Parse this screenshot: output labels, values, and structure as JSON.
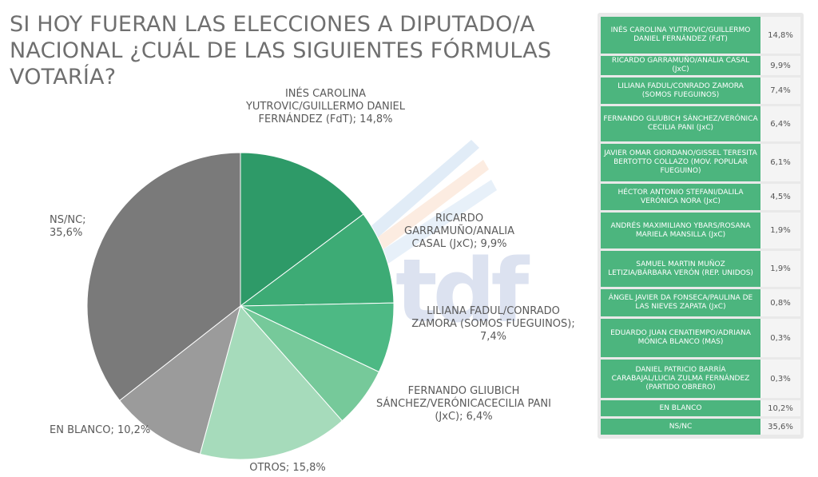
{
  "title": "SI HOY FUERAN LAS ELECCIONES A DIPUTADO/A NACIONAL ¿CUÁL DE LAS SIGUIENTES FÓRMULAS VOTARÍA?",
  "watermark": "tdf",
  "chart_data": {
    "type": "pie",
    "start": "12-o'clock, clockwise",
    "slices": [
      {
        "label": "INÉS CAROLINA YUTROVIC/GUILLERMO DANIEL FERNÁNDEZ (FdT); 14,8%",
        "value": 14.8,
        "color": "#2e9a68"
      },
      {
        "label": "RICARDO GARRAMUÑO/ANALIA CASAL (JxC); 9,9%",
        "value": 9.9,
        "color": "#3dab75"
      },
      {
        "label": "LILIANA FADUL/CONRADO ZAMORA (SOMOS FUEGUINOS); 7,4%",
        "value": 7.4,
        "color": "#4db984"
      },
      {
        "label": "FERNANDO GLIUBICH SÁNCHEZ/VERÓNICACECILIA PANI (JxC); 6,4%",
        "value": 6.4,
        "color": "#76c99a"
      },
      {
        "label": "OTROS; 15,8%",
        "value": 15.8,
        "color": "#a6dbbb"
      },
      {
        "label": "EN BLANCO; 10,2%",
        "value": 10.2,
        "color": "#9b9b9b"
      },
      {
        "label": "NS/NC; 35,6%",
        "value": 35.6,
        "color": "#7a7a7a"
      }
    ]
  },
  "table": {
    "rows": [
      {
        "name": "INÉS CAROLINA YUTROVIC/GUILLERMO DANIEL FERNÁNDEZ (FdT)",
        "value": "14,8%"
      },
      {
        "name": "RICARDO GARRAMUÑO/ANALIA CASAL (JxC)",
        "value": "9,9%"
      },
      {
        "name": "LILIANA FADUL/CONRADO ZAMORA (SOMOS FUEGUINOS)",
        "value": "7,4%"
      },
      {
        "name": "FERNANDO GLIUBICH SÁNCHEZ/VERÓNICA CECILIA PANI (JxC)",
        "value": "6,4%"
      },
      {
        "name": "JAVIER OMAR GIORDANO/GISSEL TERESITA BERTOTTO COLLAZO (MOV. POPULAR FUEGUINO)",
        "value": "6,1%"
      },
      {
        "name": "HÉCTOR ANTONIO STEFANI/DALILA VERÓNICA NORA (JxC)",
        "value": "4,5%"
      },
      {
        "name": "ANDRÉS MAXIMILIANO YBARS/ROSANA MARIELA MANSILLA (JxC)",
        "value": "1,9%"
      },
      {
        "name": "SAMUEL MARTIN MUÑOZ LETIZIA/BÁRBARA VERÓN (REP. UNIDOS)",
        "value": "1,9%"
      },
      {
        "name": "ÁNGEL JAVIER DA FONSECA/PAULINA DE LAS NIEVES ZAPATA (JxC)",
        "value": "0,8%"
      },
      {
        "name": "EDUARDO JUAN CENATIEMPO/ADRIANA MÓNICA BLANCO (MAS)",
        "value": "0,3%"
      },
      {
        "name": "DANIEL PATRICIO BARRÍA CARABAJAL/LUCIA ZULMA FERNÁNDEZ (PARTIDO OBRERO)",
        "value": "0,3%"
      },
      {
        "name": "EN BLANCO",
        "value": "10,2%"
      },
      {
        "name": "NS/NC",
        "value": "35,6%"
      }
    ]
  }
}
